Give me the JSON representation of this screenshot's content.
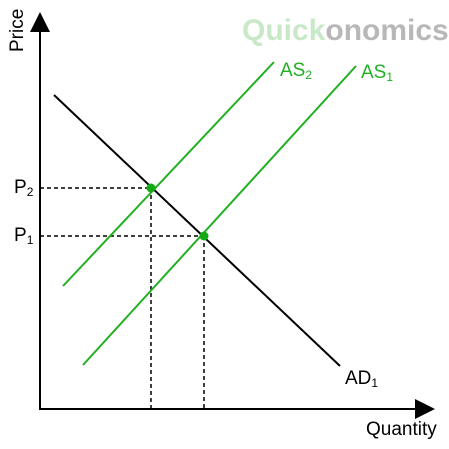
{
  "brand": {
    "light": "Quick",
    "dark": "onomics",
    "light_color": "#c8e8c8",
    "dark_color": "#b8b8b8"
  },
  "axes": {
    "y_label": "Price",
    "x_label": "Quantity",
    "color": "#000000"
  },
  "curves": {
    "as2": {
      "base": "AS",
      "sub": "2",
      "color": "#22b022"
    },
    "as1": {
      "base": "AS",
      "sub": "1",
      "color": "#22b022"
    },
    "ad1": {
      "base": "AD",
      "sub": "1",
      "color": "#000000"
    }
  },
  "prices": {
    "p2": {
      "base": "P",
      "sub": "2"
    },
    "p1": {
      "base": "P",
      "sub": "1"
    }
  },
  "equilibrium_color": "#11aa11",
  "equilibria": [
    {
      "curve": "AS2",
      "price": "P2"
    },
    {
      "curve": "AS1",
      "price": "P1"
    }
  ]
}
